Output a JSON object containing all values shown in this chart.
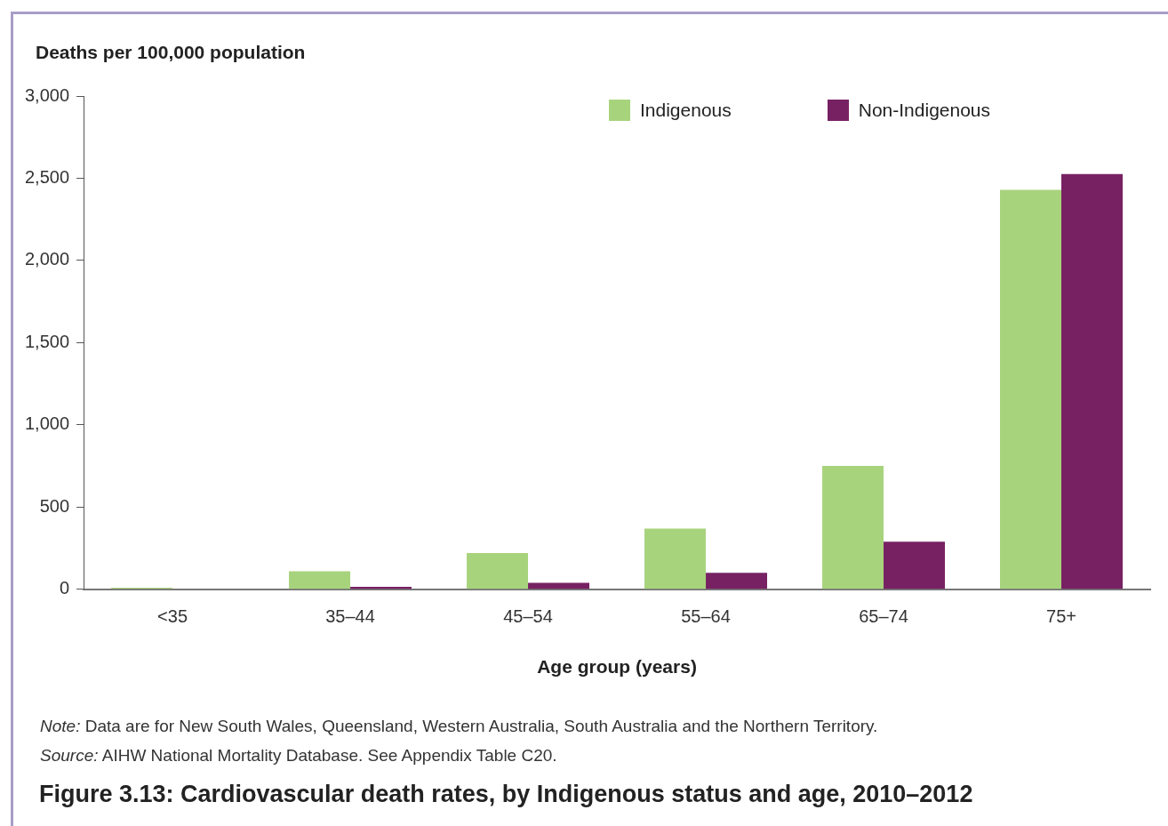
{
  "chart_data": {
    "type": "bar",
    "title": "Figure 3.13: Cardiovascular death rates, by Indigenous status and age, 2010–2012",
    "xlabel": "Age group (years)",
    "ylabel": "Deaths per 100,000 population",
    "categories": [
      "<35",
      "35–44",
      "45–54",
      "55–64",
      "65–74",
      "75+"
    ],
    "series": [
      {
        "name": "Indigenous",
        "color": "#a8d37d",
        "values": [
          10,
          110,
          220,
          370,
          750,
          2430
        ]
      },
      {
        "name": "Non-Indigenous",
        "color": "#772163",
        "values": [
          3,
          15,
          40,
          100,
          290,
          2525
        ]
      }
    ],
    "ylim": [
      0,
      3000
    ],
    "yticks": [
      0,
      {
        "value": 500,
        "label": "500"
      },
      {
        "value": 1000,
        "label": "1,000"
      },
      {
        "value": 1500,
        "label": "1,500"
      },
      {
        "value": 2000,
        "label": "2,000"
      },
      {
        "value": 2500,
        "label": "2,500"
      },
      {
        "value": 3000,
        "label": "3,000"
      }
    ],
    "grid": false,
    "legend": "top right",
    "annotations": [
      "Note: Data are for New South Wales, Queensland, Western Australia, South Australia and the Northern Territory.",
      "Source: AIHW National Mortality Database. See Appendix Table C20."
    ]
  }
}
